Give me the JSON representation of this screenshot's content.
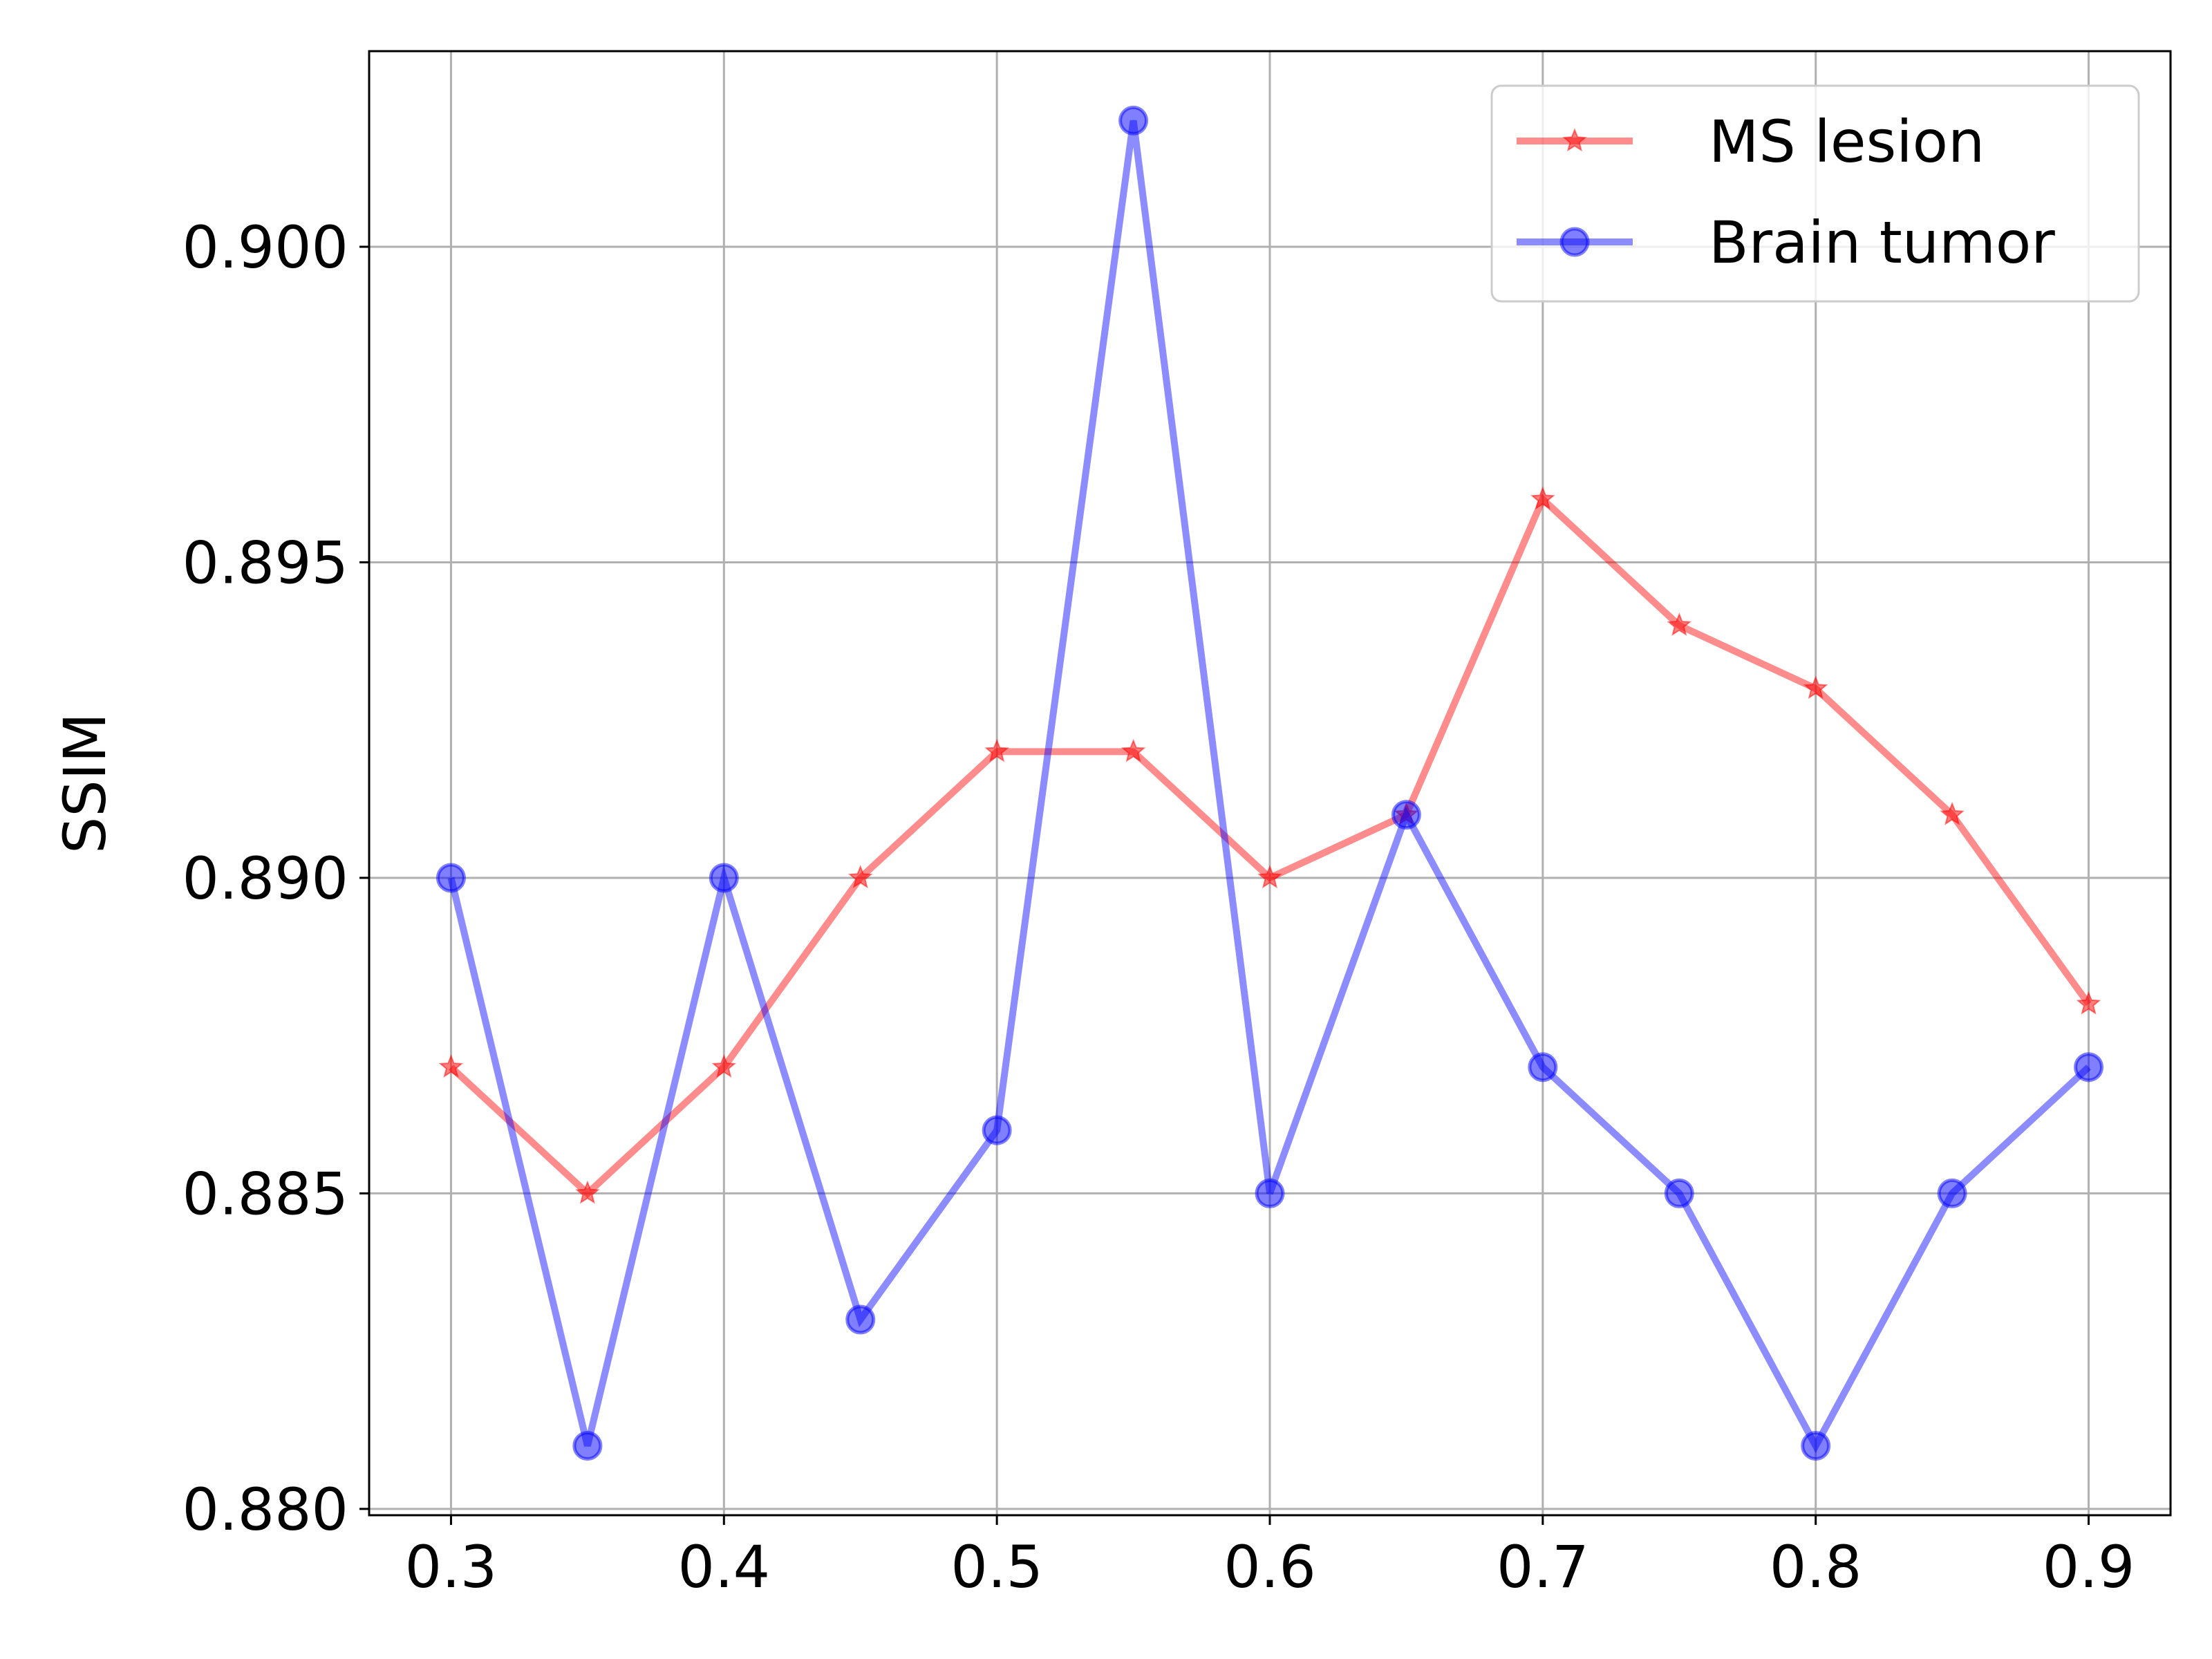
{
  "chart_data": {
    "type": "line",
    "xlabel": "",
    "ylabel": "SSIM",
    "x": [
      0.3,
      0.35,
      0.4,
      0.45,
      0.5,
      0.55,
      0.6,
      0.65,
      0.7,
      0.75,
      0.8,
      0.85,
      0.9
    ],
    "xlim": [
      0.27,
      0.93
    ],
    "ylim": [
      0.8799,
      0.9031
    ],
    "x_ticks": [
      0.3,
      0.4,
      0.5,
      0.6,
      0.7,
      0.8,
      0.9
    ],
    "x_tick_labels": [
      "0.3",
      "0.4",
      "0.5",
      "0.6",
      "0.7",
      "0.8",
      "0.9"
    ],
    "y_ticks": [
      0.88,
      0.885,
      0.89,
      0.895,
      0.9
    ],
    "y_tick_labels": [
      "0.880",
      "0.885",
      "0.890",
      "0.895",
      "0.900"
    ],
    "grid": true,
    "legend_position": "top-right",
    "series": [
      {
        "name": "MS lesion",
        "color": "#ff0000",
        "marker": "star",
        "values": [
          0.887,
          0.885,
          0.887,
          0.89,
          0.892,
          0.892,
          0.89,
          0.891,
          0.896,
          0.894,
          0.893,
          0.891,
          0.888
        ]
      },
      {
        "name": "Brain tumor",
        "color": "#0000ff",
        "marker": "circle",
        "values": [
          0.89,
          0.881,
          0.89,
          0.883,
          0.886,
          0.902,
          0.885,
          0.891,
          0.887,
          0.885,
          0.881,
          0.885,
          0.887
        ]
      }
    ]
  }
}
